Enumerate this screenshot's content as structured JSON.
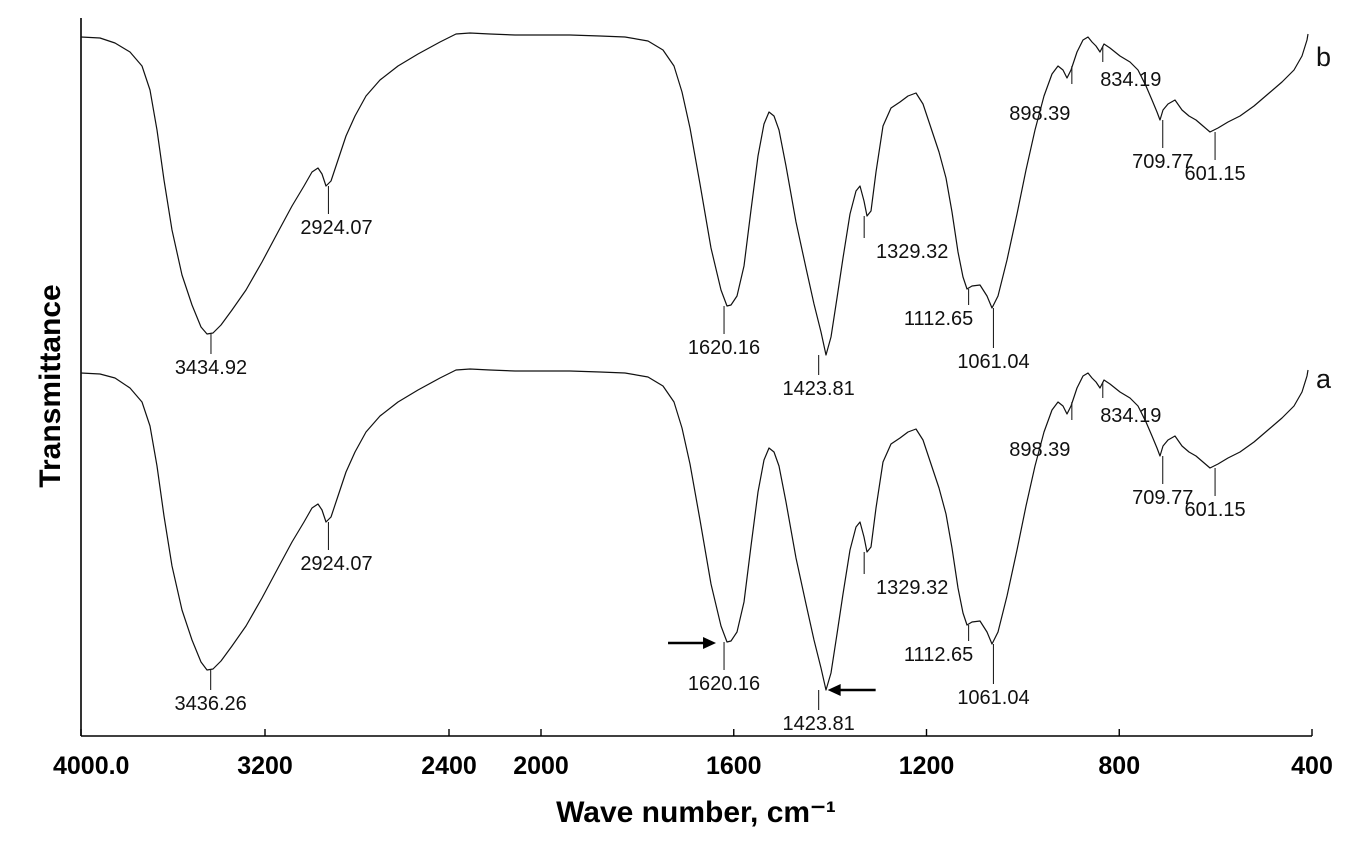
{
  "chart_data": {
    "type": "line",
    "title": "",
    "xlabel": "Wave number, cm⁻¹",
    "ylabel": "Transmittance",
    "xlim": [
      4000,
      400
    ],
    "x_reversed": true,
    "x_scale": "piecewise",
    "x_scale_breaks": [
      4000,
      2000,
      400
    ],
    "x_ticks": [
      {
        "value": 4000,
        "label": "4000.0"
      },
      {
        "value": 3200,
        "label": "3200"
      },
      {
        "value": 2400,
        "label": "2400"
      },
      {
        "value": 2000,
        "label": "2000"
      },
      {
        "value": 1600,
        "label": "1600"
      },
      {
        "value": 1200,
        "label": "1200"
      },
      {
        "value": 800,
        "label": "800"
      },
      {
        "value": 400,
        "label": "400"
      }
    ],
    "y_ticks": [],
    "grid": false,
    "legend": "none",
    "series": [
      {
        "name": "b",
        "peaks": [
          {
            "x": 3434.92,
            "label": "3434.92"
          },
          {
            "x": 2924.07,
            "label": "2924.07"
          },
          {
            "x": 1620.16,
            "label": "1620.16"
          },
          {
            "x": 1423.81,
            "label": "1423.81"
          },
          {
            "x": 1329.32,
            "label": "1329.32"
          },
          {
            "x": 1112.65,
            "label": "1112.65"
          },
          {
            "x": 1061.04,
            "label": "1061.04"
          },
          {
            "x": 898.39,
            "label": "898.39"
          },
          {
            "x": 834.19,
            "label": "834.19"
          },
          {
            "x": 709.77,
            "label": "709.77"
          },
          {
            "x": 601.15,
            "label": "601.15"
          }
        ]
      },
      {
        "name": "a",
        "peaks": [
          {
            "x": 3436.26,
            "label": "3436.26"
          },
          {
            "x": 2924.07,
            "label": "2924.07"
          },
          {
            "x": 1620.16,
            "label": "1620.16"
          },
          {
            "x": 1423.81,
            "label": "1423.81"
          },
          {
            "x": 1329.32,
            "label": "1329.32"
          },
          {
            "x": 1112.65,
            "label": "1112.65"
          },
          {
            "x": 1061.04,
            "label": "1061.04"
          },
          {
            "x": 898.39,
            "label": "898.39"
          },
          {
            "x": 834.19,
            "label": "834.19"
          },
          {
            "x": 709.77,
            "label": "709.77"
          },
          {
            "x": 601.15,
            "label": "601.15"
          }
        ]
      }
    ],
    "annotations": [
      {
        "type": "arrow",
        "series": "a",
        "x": 1620.16,
        "direction": "right"
      },
      {
        "type": "arrow",
        "series": "a",
        "x": 1423.81,
        "direction": "left"
      }
    ]
  }
}
